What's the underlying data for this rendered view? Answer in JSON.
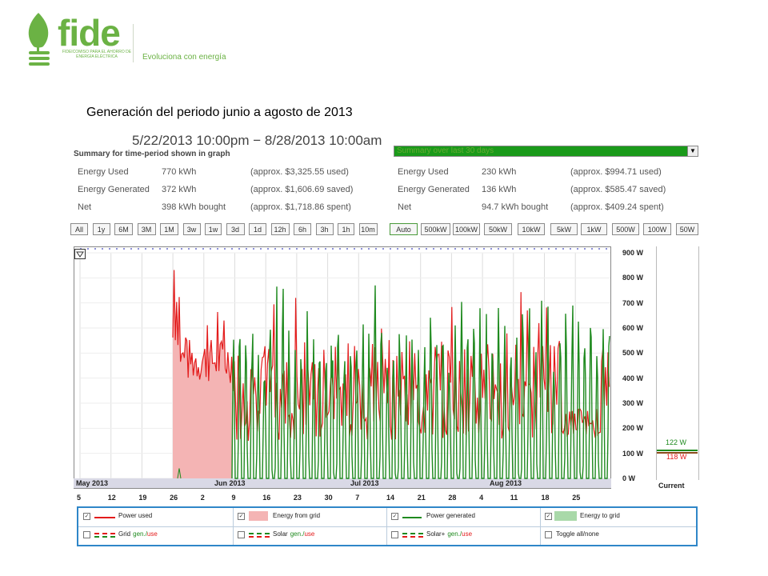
{
  "brand": {
    "name": "fide",
    "subtitle": "FIDEICOMISO PARA EL AHORRO DE ENERGÍA ELÉCTRICA",
    "tagline": "Evoluciona con energía"
  },
  "slide_title": "Generación del periodo junio a agosto de 2013",
  "range": "5/22/2013 10:00pm − 8/28/2013 10:00am",
  "summary": {
    "heading": "Summary for time-period shown in graph",
    "rows": [
      {
        "label": "Energy Used",
        "value": "770 kWh",
        "note": "(approx. $3,325.55 used)"
      },
      {
        "label": "Energy Generated",
        "value": "372 kWh",
        "note": "(approx. $1,606.69 saved)"
      },
      {
        "label": "Net",
        "value": "398 kWh bought",
        "note": "(approx. $1,718.86 spent)"
      }
    ]
  },
  "summary30": {
    "selected": "Summary over last 30 days",
    "rows": [
      {
        "label": "Energy Used",
        "value": "230 kWh",
        "note": "(approx. $994.71 used)"
      },
      {
        "label": "Energy Generated",
        "value": "136 kWh",
        "note": "(approx. $585.47 saved)"
      },
      {
        "label": "Net",
        "value": "94.7 kWh bought",
        "note": "(approx. $409.24 spent)"
      }
    ]
  },
  "time_buttons": [
    "All",
    "1y",
    "6M",
    "3M",
    "1M",
    "3w",
    "1w",
    "3d",
    "1d",
    "12h",
    "6h",
    "3h",
    "1h",
    "10m"
  ],
  "scale_buttons": [
    "Auto",
    "500kW",
    "100kW",
    "50kW",
    "10kW",
    "5kW",
    "1kW",
    "500W",
    "100W",
    "50W"
  ],
  "chart_data": {
    "type": "line",
    "y_ticks": [
      "900 W",
      "800 W",
      "700 W",
      "600 W",
      "500 W",
      "400 W",
      "300 W",
      "200 W",
      "100 W",
      "0 W"
    ],
    "ylim": [
      0,
      900
    ],
    "x_ticks": [
      "5",
      "12",
      "19",
      "26",
      "2",
      "9",
      "16",
      "23",
      "30",
      "7",
      "14",
      "21",
      "28",
      "4",
      "11",
      "18",
      "25"
    ],
    "months": [
      "May 2013",
      "Jun 2013",
      "Jul 2013",
      "Aug 2013"
    ],
    "current": {
      "label": "Current",
      "generated": "122 W",
      "used": "118 W"
    },
    "colors": {
      "used": "#e31b1b",
      "generated": "#1f8a1f",
      "fill_grid": "#f4b4b4"
    }
  },
  "legend": [
    {
      "label": "Power used",
      "checked": true
    },
    {
      "label": "Energy from grid",
      "checked": true
    },
    {
      "label": "Power generated",
      "checked": true
    },
    {
      "label": "Energy to grid",
      "checked": true
    },
    {
      "label": "Grid",
      "suffix": "gen./use",
      "checked": false
    },
    {
      "label": "Solar",
      "suffix": "gen./use",
      "checked": false
    },
    {
      "label": "Solar+",
      "suffix": "gen./use",
      "checked": false
    },
    {
      "label": "Toggle all/none",
      "checked": false
    }
  ]
}
